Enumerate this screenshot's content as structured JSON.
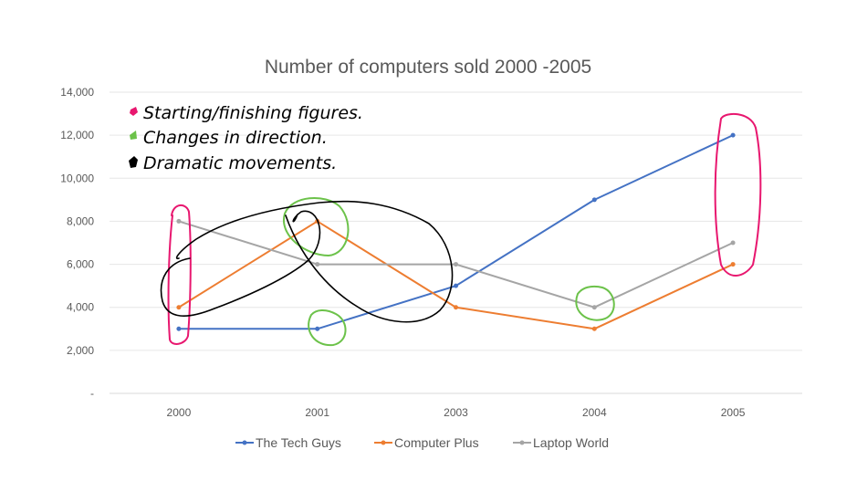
{
  "chart_data": {
    "type": "line",
    "title": "Number of computers sold 2000 -2005",
    "categories": [
      "2000",
      "2001",
      "2003",
      "2004",
      "2005"
    ],
    "series": [
      {
        "name": "The Tech Guys",
        "values": [
          3000,
          3000,
          5000,
          9000,
          12000
        ],
        "color": "#4472c4"
      },
      {
        "name": "Computer Plus",
        "values": [
          4000,
          8000,
          4000,
          3000,
          6000
        ],
        "color": "#ed7d31"
      },
      {
        "name": "Laptop World",
        "values": [
          8000,
          6000,
          6000,
          4000,
          7000
        ],
        "color": "#a5a5a5"
      }
    ],
    "ylim": [
      0,
      14000
    ],
    "yticks": [
      0,
      2000,
      4000,
      6000,
      8000,
      10000,
      12000,
      14000
    ],
    "ytick_labels": [
      "-",
      "2,000",
      "4,000",
      "6,000",
      "8,000",
      "10,000",
      "12,000",
      "14,000"
    ],
    "xlabel": "",
    "ylabel": "",
    "grid": true,
    "legend_position": "bottom",
    "annotations": [
      {
        "text": "Starting/finishing figures.",
        "color": "#e8176f"
      },
      {
        "text": "Changes in direction.",
        "color": "#6cc24a"
      },
      {
        "text": "Dramatic movements.",
        "color": "#000000"
      }
    ]
  }
}
